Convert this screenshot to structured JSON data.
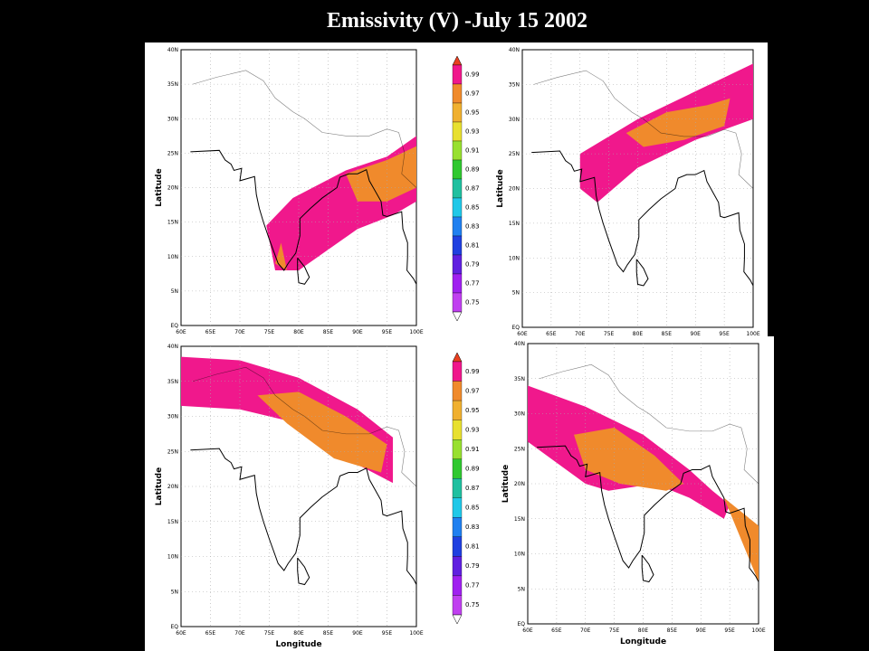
{
  "title": "Emissivity (V) -July 15 2002",
  "lat_labels": [
    "40N",
    "35N",
    "30N",
    "25N",
    "20N",
    "15N",
    "10N",
    "5N",
    "EQ"
  ],
  "lon_labels": [
    "60E",
    "65E",
    "70E",
    "75E",
    "80E",
    "85E",
    "90E",
    "95E",
    "100E"
  ],
  "lat_axis": "Latitude",
  "lon_axis": "Longitude",
  "colorbar_labels": [
    "0.99",
    "0.97",
    "0.95",
    "0.93",
    "0.91",
    "0.89",
    "0.87",
    "0.85",
    "0.83",
    "0.81",
    "0.79",
    "0.77",
    "0.75"
  ]
}
